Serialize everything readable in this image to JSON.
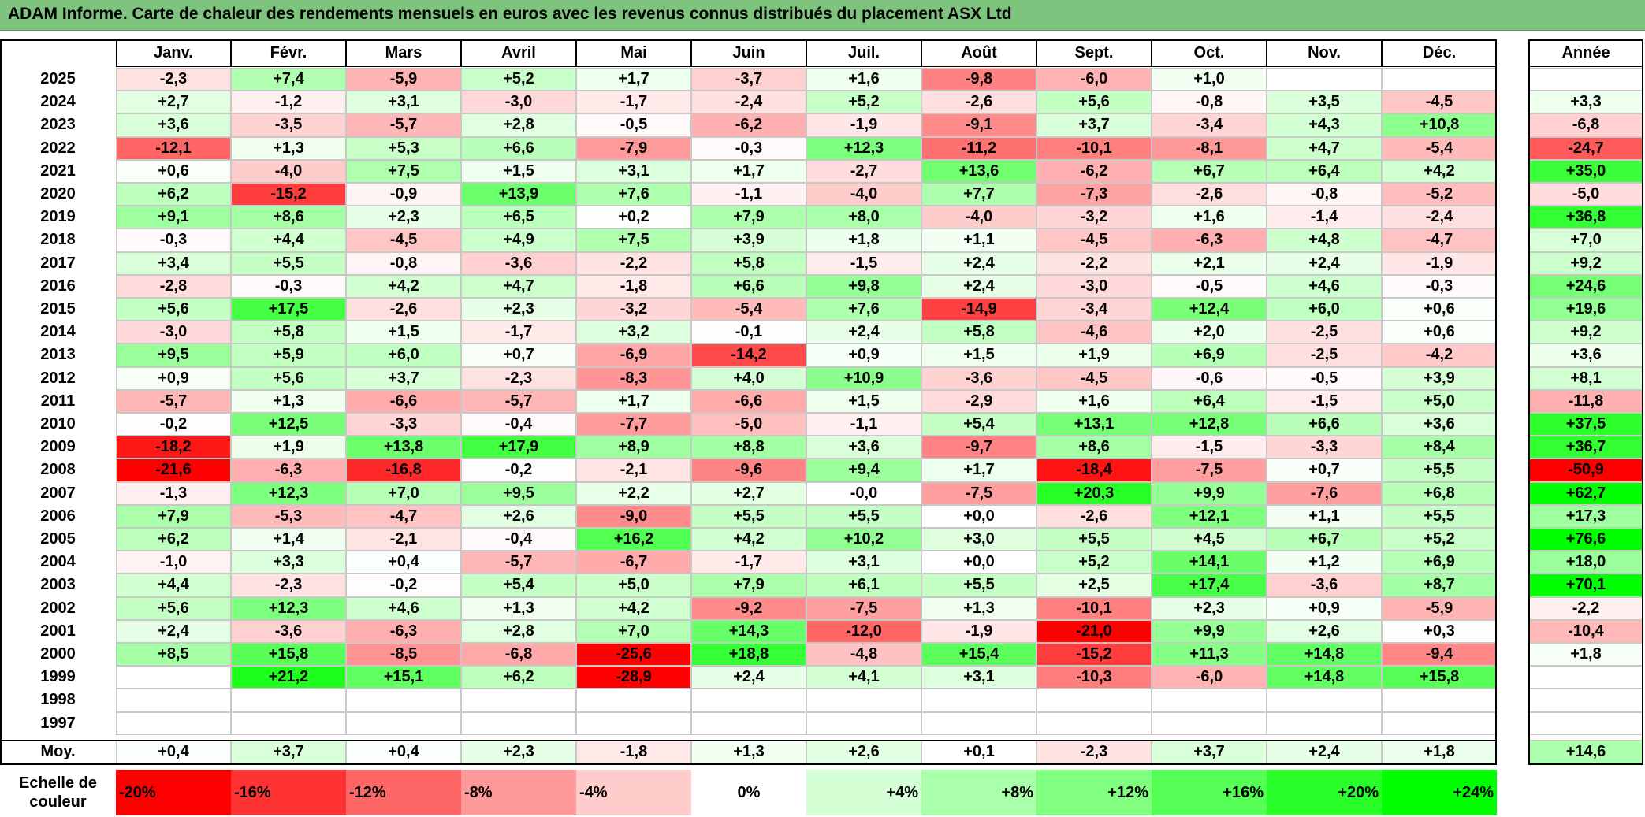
{
  "title": "ADAM Informe. Carte de chaleur des rendements mensuels en euros avec les revenus connus distribués du placement ASX Ltd",
  "colors": {
    "title_bg": "#7ec47e",
    "max_red": "#ff0000",
    "max_green": "#00ff00",
    "neutral": "#ffffff"
  },
  "chart_data": {
    "type": "heatmap",
    "months": [
      "Janv.",
      "Févr.",
      "Mars",
      "Avril",
      "Mai",
      "Juin",
      "Juil.",
      "Août",
      "Sept.",
      "Oct.",
      "Nov.",
      "Déc."
    ],
    "annual_header": "Année",
    "rows": [
      {
        "year": "2025",
        "values": [
          "-2,3",
          "+7,4",
          "-5,9",
          "+5,2",
          "+1,7",
          "-3,7",
          "+1,6",
          "-9,8",
          "-6,0",
          "+1,0",
          "",
          ""
        ],
        "annual": ""
      },
      {
        "year": "2024",
        "values": [
          "+2,7",
          "-1,2",
          "+3,1",
          "-3,0",
          "-1,7",
          "-2,4",
          "+5,2",
          "-2,6",
          "+5,6",
          "-0,8",
          "+3,5",
          "-4,5"
        ],
        "annual": "+3,3"
      },
      {
        "year": "2023",
        "values": [
          "+3,6",
          "-3,5",
          "-5,7",
          "+2,8",
          "-0,5",
          "-6,2",
          "-1,9",
          "-9,1",
          "+3,7",
          "-3,4",
          "+4,3",
          "+10,8"
        ],
        "annual": "-6,8"
      },
      {
        "year": "2022",
        "values": [
          "-12,1",
          "+1,3",
          "+5,3",
          "+6,6",
          "-7,9",
          "-0,3",
          "+12,3",
          "-11,2",
          "-10,1",
          "-8,1",
          "+4,7",
          "-5,4"
        ],
        "annual": "-24,7"
      },
      {
        "year": "2021",
        "values": [
          "+0,6",
          "-4,0",
          "+7,5",
          "+1,5",
          "+3,1",
          "+1,7",
          "-2,7",
          "+13,6",
          "-6,2",
          "+6,7",
          "+6,4",
          "+4,2"
        ],
        "annual": "+35,0"
      },
      {
        "year": "2020",
        "values": [
          "+6,2",
          "-15,2",
          "-0,9",
          "+13,9",
          "+7,6",
          "-1,1",
          "-4,0",
          "+7,7",
          "-7,3",
          "-2,6",
          "-0,8",
          "-5,2"
        ],
        "annual": "-5,0"
      },
      {
        "year": "2019",
        "values": [
          "+9,1",
          "+8,6",
          "+2,3",
          "+6,5",
          "+0,2",
          "+7,9",
          "+8,0",
          "-4,0",
          "-3,2",
          "+1,6",
          "-1,4",
          "-2,4"
        ],
        "annual": "+36,8"
      },
      {
        "year": "2018",
        "values": [
          "-0,3",
          "+4,4",
          "-4,5",
          "+4,9",
          "+7,5",
          "+3,9",
          "+1,8",
          "+1,1",
          "-4,5",
          "-6,3",
          "+4,8",
          "-4,7"
        ],
        "annual": "+7,0"
      },
      {
        "year": "2017",
        "values": [
          "+3,4",
          "+5,5",
          "-0,8",
          "-3,6",
          "-2,2",
          "+5,8",
          "-1,5",
          "+2,4",
          "-2,2",
          "+2,1",
          "+2,4",
          "-1,9"
        ],
        "annual": "+9,2"
      },
      {
        "year": "2016",
        "values": [
          "-2,8",
          "-0,3",
          "+4,2",
          "+4,7",
          "-1,8",
          "+6,6",
          "+9,8",
          "+2,4",
          "-3,0",
          "-0,5",
          "+4,6",
          "-0,3"
        ],
        "annual": "+24,6"
      },
      {
        "year": "2015",
        "values": [
          "+5,6",
          "+17,5",
          "-2,6",
          "+2,3",
          "-3,2",
          "-5,4",
          "+7,6",
          "-14,9",
          "-3,4",
          "+12,4",
          "+6,0",
          "+0,6"
        ],
        "annual": "+19,6"
      },
      {
        "year": "2014",
        "values": [
          "-3,0",
          "+5,8",
          "+1,5",
          "-1,7",
          "+3,2",
          "-0,1",
          "+2,4",
          "+5,8",
          "-4,6",
          "+2,0",
          "-2,5",
          "+0,6"
        ],
        "annual": "+9,2"
      },
      {
        "year": "2013",
        "values": [
          "+9,5",
          "+5,9",
          "+6,0",
          "+0,7",
          "-6,9",
          "-14,2",
          "+0,9",
          "+1,5",
          "+1,9",
          "+6,9",
          "-2,5",
          "-4,2"
        ],
        "annual": "+3,6"
      },
      {
        "year": "2012",
        "values": [
          "+0,9",
          "+5,6",
          "+3,7",
          "-2,3",
          "-8,3",
          "+4,0",
          "+10,9",
          "-3,6",
          "-4,5",
          "-0,6",
          "-0,5",
          "+3,9"
        ],
        "annual": "+8,1"
      },
      {
        "year": "2011",
        "values": [
          "-5,7",
          "+1,3",
          "-6,6",
          "-5,7",
          "+1,7",
          "-6,6",
          "+1,5",
          "-2,9",
          "+1,6",
          "+6,4",
          "-1,5",
          "+5,0"
        ],
        "annual": "-11,8"
      },
      {
        "year": "2010",
        "values": [
          "-0,2",
          "+12,5",
          "-3,3",
          "-0,4",
          "-7,7",
          "-5,0",
          "-1,1",
          "+5,4",
          "+13,1",
          "+12,8",
          "+6,6",
          "+3,6"
        ],
        "annual": "+37,5"
      },
      {
        "year": "2009",
        "values": [
          "-18,2",
          "+1,9",
          "+13,8",
          "+17,9",
          "+8,9",
          "+8,8",
          "+3,6",
          "-9,7",
          "+8,6",
          "-1,5",
          "-3,3",
          "+8,4"
        ],
        "annual": "+36,7"
      },
      {
        "year": "2008",
        "values": [
          "-21,6",
          "-6,3",
          "-16,8",
          "-0,2",
          "-2,1",
          "-9,6",
          "+9,4",
          "+1,7",
          "-18,4",
          "-7,5",
          "+0,7",
          "+5,5"
        ],
        "annual": "-50,9"
      },
      {
        "year": "2007",
        "values": [
          "-1,3",
          "+12,3",
          "+7,0",
          "+9,5",
          "+2,2",
          "+2,7",
          "-0,0",
          "-7,5",
          "+20,3",
          "+9,9",
          "-7,6",
          "+6,8"
        ],
        "annual": "+62,7"
      },
      {
        "year": "2006",
        "values": [
          "+7,9",
          "-5,3",
          "-4,7",
          "+2,6",
          "-9,0",
          "+5,5",
          "+5,5",
          "+0,0",
          "-2,6",
          "+12,1",
          "+1,1",
          "+5,5"
        ],
        "annual": "+17,3"
      },
      {
        "year": "2005",
        "values": [
          "+6,2",
          "+1,4",
          "-2,1",
          "-0,4",
          "+16,2",
          "+4,2",
          "+10,2",
          "+3,0",
          "+5,5",
          "+4,5",
          "+6,7",
          "+5,2"
        ],
        "annual": "+76,6"
      },
      {
        "year": "2004",
        "values": [
          "-1,0",
          "+3,3",
          "+0,4",
          "-5,7",
          "-6,7",
          "-1,7",
          "+3,1",
          "+0,0",
          "+5,2",
          "+14,1",
          "+1,2",
          "+6,9"
        ],
        "annual": "+18,0"
      },
      {
        "year": "2003",
        "values": [
          "+4,4",
          "-2,3",
          "-0,2",
          "+5,4",
          "+5,0",
          "+7,9",
          "+6,1",
          "+5,5",
          "+2,5",
          "+17,4",
          "-3,6",
          "+8,7"
        ],
        "annual": "+70,1"
      },
      {
        "year": "2002",
        "values": [
          "+5,6",
          "+12,3",
          "+4,6",
          "+1,3",
          "+4,2",
          "-9,2",
          "-7,5",
          "+1,3",
          "-10,1",
          "+2,3",
          "+0,9",
          "-5,9"
        ],
        "annual": "-2,2"
      },
      {
        "year": "2001",
        "values": [
          "+2,4",
          "-3,6",
          "-6,3",
          "+2,8",
          "+7,0",
          "+14,3",
          "-12,0",
          "-1,9",
          "-21,0",
          "+9,9",
          "+2,6",
          "+0,3"
        ],
        "annual": "-10,4"
      },
      {
        "year": "2000",
        "values": [
          "+8,5",
          "+15,8",
          "-8,5",
          "-6,8",
          "-25,6",
          "+18,8",
          "-4,8",
          "+15,4",
          "-15,2",
          "+11,3",
          "+14,8",
          "-9,4"
        ],
        "annual": "+1,8"
      },
      {
        "year": "1999",
        "values": [
          "",
          "+21,2",
          "+15,1",
          "+6,2",
          "-28,9",
          "+2,4",
          "+4,1",
          "+3,1",
          "-10,3",
          "-6,0",
          "+14,8",
          "+15,8"
        ],
        "annual": ""
      },
      {
        "year": "1998",
        "values": [
          "",
          "",
          "",
          "",
          "",
          "",
          "",
          "",
          "",
          "",
          "",
          ""
        ],
        "annual": ""
      },
      {
        "year": "1997",
        "values": [
          "",
          "",
          "",
          "",
          "",
          "",
          "",
          "",
          "",
          "",
          "",
          ""
        ],
        "annual": ""
      }
    ],
    "average": {
      "label": "Moy.",
      "values": [
        "+0,4",
        "+3,7",
        "+0,4",
        "+2,3",
        "-1,8",
        "+1,3",
        "+2,6",
        "+0,1",
        "-2,3",
        "+3,7",
        "+2,4",
        "+1,8"
      ],
      "annual": "+14,6"
    },
    "scale": {
      "label_line1": "Echelle de",
      "label_line2": "couleur",
      "steps": [
        {
          "label": "-20%",
          "value": -20
        },
        {
          "label": "-16%",
          "value": -16
        },
        {
          "label": "-12%",
          "value": -12
        },
        {
          "label": "-8%",
          "value": -8
        },
        {
          "label": "-4%",
          "value": -4
        },
        {
          "label": "0%",
          "value": 0
        },
        {
          "label": "+4%",
          "value": 4
        },
        {
          "label": "+8%",
          "value": 8
        },
        {
          "label": "+12%",
          "value": 12
        },
        {
          "label": "+16%",
          "value": 16
        },
        {
          "label": "+20%",
          "value": 20
        },
        {
          "label": "+24%",
          "value": 24
        }
      ]
    },
    "color_range": {
      "min": -20,
      "max": 24
    }
  }
}
